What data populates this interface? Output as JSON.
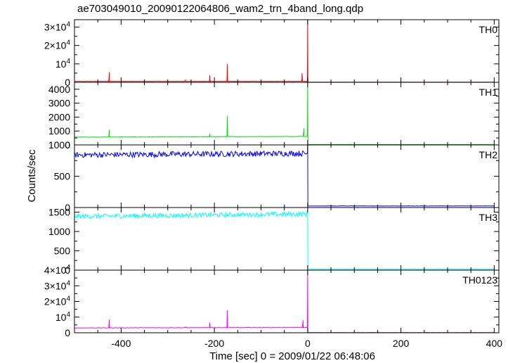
{
  "chart_data": {
    "type": "line",
    "title": "ae703049010_20090122064806_wam2_trn_4band_long.qdp",
    "xlabel": "Time [sec] 0 = 2009/01/22 06:48:06",
    "ylabel": "Counts/sec",
    "xlim": [
      -500,
      410
    ],
    "xticks": [
      -400,
      -200,
      0,
      200,
      400
    ],
    "panels": [
      {
        "name": "TH0",
        "color": "#ff0000",
        "ylim": [
          0,
          34000
        ],
        "yticks": [
          {
            "value": 0,
            "label": "0"
          },
          {
            "value": 10000,
            "label": "10^4"
          },
          {
            "value": 20000,
            "label": "2×10^4"
          },
          {
            "value": 30000,
            "label": "3×10^4"
          }
        ],
        "pre_level": 500,
        "pre_slope": 0,
        "pre_noise": 40,
        "post_level": 120,
        "spikes": [
          [
            -425,
            5500
          ],
          [
            -262,
            1200
          ],
          [
            -210,
            3800
          ],
          [
            -172,
            10000
          ],
          [
            -12,
            5000
          ],
          [
            0,
            34000
          ]
        ]
      },
      {
        "name": "TH1",
        "color": "#00e000",
        "ylim": [
          0,
          4500
        ],
        "yticks": [
          {
            "value": 0,
            "label": "0"
          },
          {
            "value": 1000,
            "label": "1000"
          },
          {
            "value": 2000,
            "label": "2000"
          },
          {
            "value": 3000,
            "label": "3000"
          },
          {
            "value": 4000,
            "label": "4000"
          }
        ],
        "pre_level": 560,
        "pre_slope": 0.1,
        "pre_noise": 15,
        "post_level": 30,
        "spikes": [
          [
            -425,
            1100
          ],
          [
            -210,
            800
          ],
          [
            -172,
            2100
          ],
          [
            -8,
            1200
          ],
          [
            0,
            4500
          ]
        ]
      },
      {
        "name": "TH2",
        "color": "#0000ff",
        "ylim": [
          0,
          1000
        ],
        "yticks": [
          {
            "value": 0,
            "label": "0"
          },
          {
            "value": 500,
            "label": "500"
          },
          {
            "value": 1000,
            "label": "1000"
          }
        ],
        "pre_level": 840,
        "pre_slope": 0.05,
        "pre_noise": 45,
        "post_level": 25,
        "spikes": [
          [
            0,
            1000
          ]
        ]
      },
      {
        "name": "TH3",
        "color": "#00ffff",
        "ylim": [
          0,
          1620
        ],
        "yticks": [
          {
            "value": 0,
            "label": "0"
          },
          {
            "value": 500,
            "label": "500"
          },
          {
            "value": 1000,
            "label": "1000"
          },
          {
            "value": 1500,
            "label": "1500"
          }
        ],
        "pre_level": 1390,
        "pre_slope": 0.12,
        "pre_noise": 60,
        "post_level": 25,
        "spikes": [
          [
            0,
            1580
          ]
        ]
      },
      {
        "name": "TH0123",
        "color": "#ff00ff",
        "ylim": [
          0,
          40000
        ],
        "yticks": [
          {
            "value": 0,
            "label": "0"
          },
          {
            "value": 10000,
            "label": "10^4"
          },
          {
            "value": 20000,
            "label": "2×10^4"
          },
          {
            "value": 30000,
            "label": "3×10^4"
          },
          {
            "value": 40000,
            "label": "4×10^4"
          }
        ],
        "pre_level": 3100,
        "pre_slope": 0.5,
        "pre_noise": 120,
        "post_level": 150,
        "spikes": [
          [
            -425,
            8500
          ],
          [
            -262,
            3800
          ],
          [
            -210,
            6500
          ],
          [
            -172,
            14500
          ],
          [
            -10,
            8000
          ],
          [
            0,
            40000
          ]
        ]
      }
    ]
  }
}
